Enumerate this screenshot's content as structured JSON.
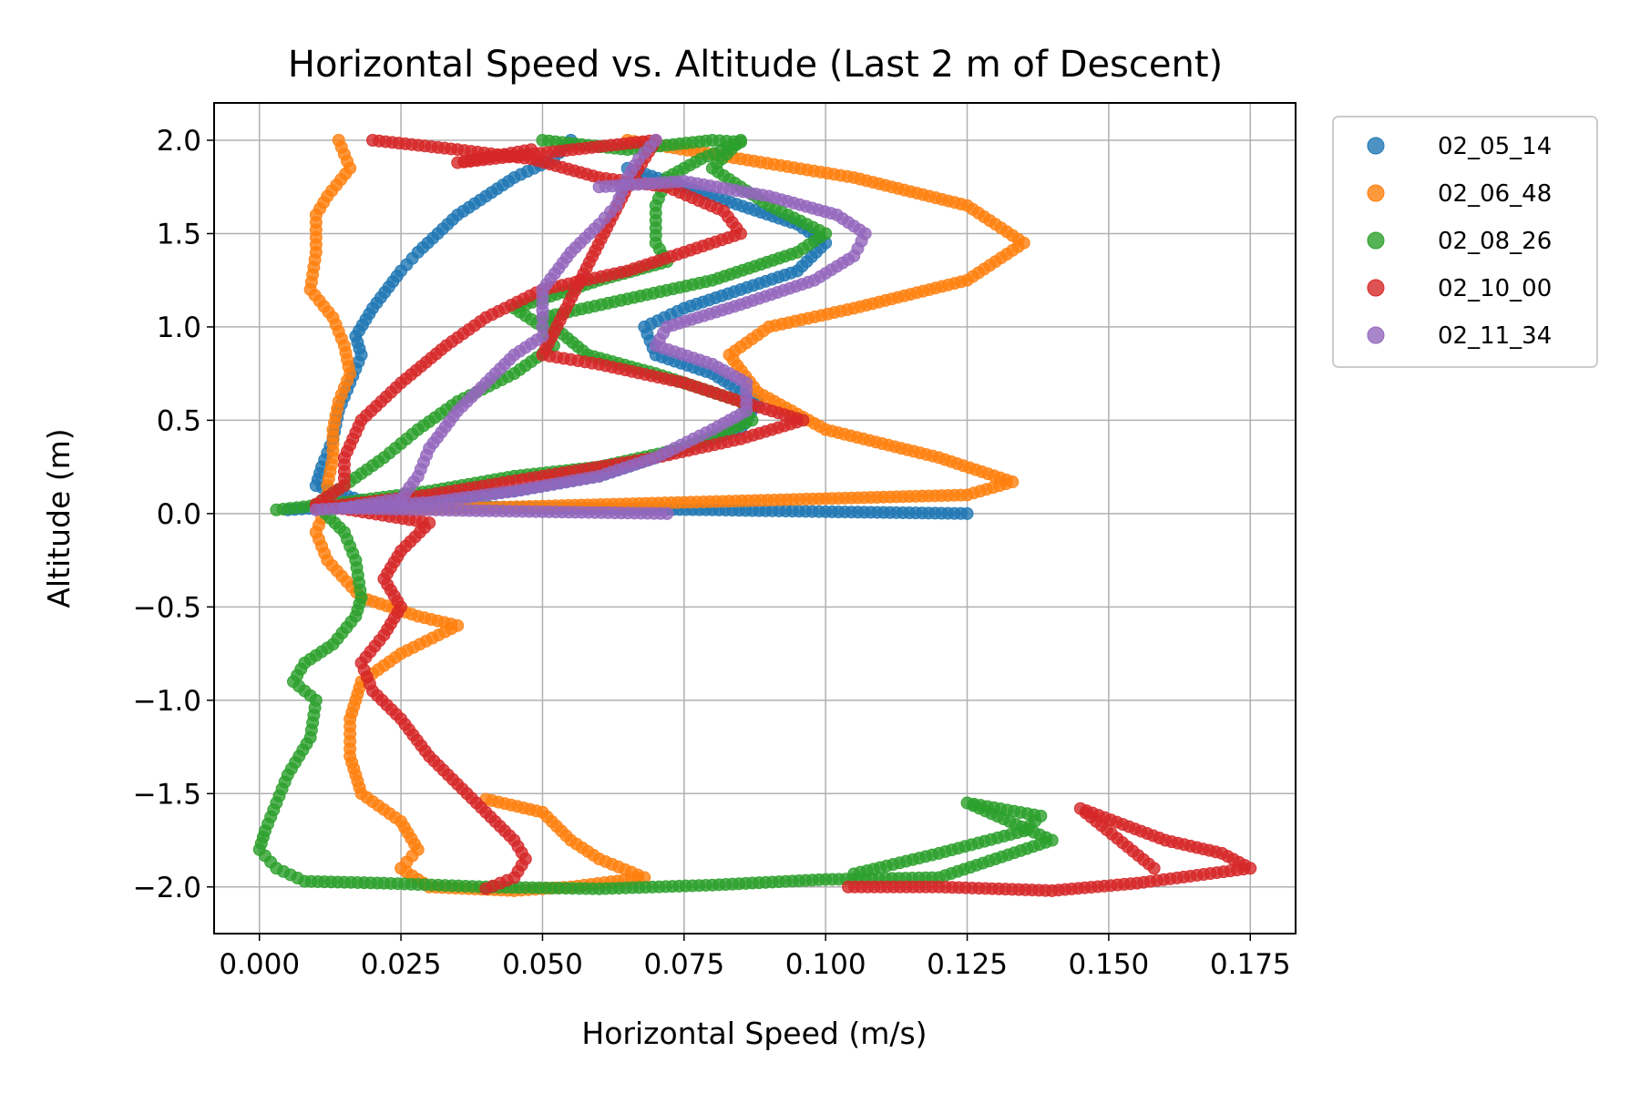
{
  "chart_data": {
    "type": "scatter",
    "title": "Horizontal Speed vs. Altitude (Last 2 m of Descent)",
    "xlabel": "Horizontal Speed (m/s)",
    "ylabel": "Altitude (m)",
    "xlim": [
      -0.008,
      0.183
    ],
    "ylim": [
      -2.25,
      2.2
    ],
    "xticks": [
      0.0,
      0.025,
      0.05,
      0.075,
      0.1,
      0.125,
      0.15,
      0.175
    ],
    "xtick_labels": [
      "0.000",
      "0.025",
      "0.050",
      "0.075",
      "0.100",
      "0.125",
      "0.150",
      "0.175"
    ],
    "yticks": [
      2.0,
      1.5,
      1.0,
      0.5,
      0.0,
      -0.5,
      -1.0,
      -1.5,
      -2.0
    ],
    "ytick_labels": [
      "2.0",
      "1.5",
      "1.0",
      "0.5",
      "0.0",
      "−0.5",
      "−1.0",
      "−1.5",
      "−2.0"
    ],
    "grid": true,
    "legend_position": "outside-top-right",
    "series": [
      {
        "name": "02_05_14",
        "color": "#1f77b4",
        "points": [
          [
            0.055,
            2.0
          ],
          [
            0.052,
            1.9
          ],
          [
            0.045,
            1.8
          ],
          [
            0.035,
            1.6
          ],
          [
            0.028,
            1.4
          ],
          [
            0.025,
            1.3
          ],
          [
            0.02,
            1.1
          ],
          [
            0.017,
            0.95
          ],
          [
            0.018,
            0.85
          ],
          [
            0.016,
            0.7
          ],
          [
            0.014,
            0.55
          ],
          [
            0.013,
            0.4
          ],
          [
            0.011,
            0.25
          ],
          [
            0.01,
            0.15
          ],
          [
            0.02,
            0.05
          ],
          [
            0.05,
            0.03
          ],
          [
            0.08,
            0.02
          ],
          [
            0.1,
            0.01
          ],
          [
            0.125,
            0.0
          ],
          [
            0.065,
            1.85
          ],
          [
            0.08,
            1.7
          ],
          [
            0.095,
            1.55
          ],
          [
            0.1,
            1.45
          ],
          [
            0.095,
            1.3
          ],
          [
            0.085,
            1.2
          ],
          [
            0.075,
            1.1
          ],
          [
            0.068,
            1.0
          ],
          [
            0.07,
            0.85
          ],
          [
            0.08,
            0.75
          ],
          [
            0.088,
            0.6
          ],
          [
            0.085,
            0.45
          ],
          [
            0.075,
            0.35
          ],
          [
            0.06,
            0.2
          ],
          [
            0.045,
            0.12
          ],
          [
            0.03,
            0.08
          ],
          [
            0.015,
            0.04
          ],
          [
            0.005,
            0.02
          ]
        ]
      },
      {
        "name": "02_06_48",
        "color": "#ff7f0e",
        "points": [
          [
            0.014,
            2.0
          ],
          [
            0.016,
            1.85
          ],
          [
            0.012,
            1.7
          ],
          [
            0.01,
            1.6
          ],
          [
            0.01,
            1.4
          ],
          [
            0.009,
            1.2
          ],
          [
            0.013,
            1.05
          ],
          [
            0.015,
            0.9
          ],
          [
            0.016,
            0.75
          ],
          [
            0.014,
            0.6
          ],
          [
            0.013,
            0.45
          ],
          [
            0.013,
            0.3
          ],
          [
            0.012,
            0.15
          ],
          [
            0.012,
            0.05
          ],
          [
            0.01,
            -0.1
          ],
          [
            0.012,
            -0.25
          ],
          [
            0.018,
            -0.45
          ],
          [
            0.028,
            -0.55
          ],
          [
            0.035,
            -0.6
          ],
          [
            0.025,
            -0.75
          ],
          [
            0.018,
            -0.9
          ],
          [
            0.016,
            -1.1
          ],
          [
            0.016,
            -1.3
          ],
          [
            0.018,
            -1.5
          ],
          [
            0.025,
            -1.65
          ],
          [
            0.028,
            -1.8
          ],
          [
            0.025,
            -1.9
          ],
          [
            0.03,
            -2.0
          ],
          [
            0.045,
            -2.02
          ],
          [
            0.055,
            -2.0
          ],
          [
            0.068,
            -1.95
          ],
          [
            0.06,
            -1.85
          ],
          [
            0.055,
            -1.75
          ],
          [
            0.05,
            -1.6
          ],
          [
            0.04,
            -1.53
          ],
          [
            0.065,
            2.0
          ],
          [
            0.085,
            1.9
          ],
          [
            0.105,
            1.8
          ],
          [
            0.125,
            1.65
          ],
          [
            0.135,
            1.45
          ],
          [
            0.125,
            1.25
          ],
          [
            0.105,
            1.1
          ],
          [
            0.09,
            1.0
          ],
          [
            0.083,
            0.85
          ],
          [
            0.088,
            0.65
          ],
          [
            0.1,
            0.45
          ],
          [
            0.12,
            0.3
          ],
          [
            0.133,
            0.17
          ],
          [
            0.125,
            0.1
          ],
          [
            0.1,
            0.08
          ],
          [
            0.075,
            0.06
          ],
          [
            0.05,
            0.04
          ],
          [
            0.025,
            0.02
          ]
        ]
      },
      {
        "name": "02_08_26",
        "color": "#2ca02c",
        "points": [
          [
            0.05,
            2.0
          ],
          [
            0.065,
            1.95
          ],
          [
            0.08,
            2.0
          ],
          [
            0.085,
            1.99
          ],
          [
            0.078,
            1.9
          ],
          [
            0.072,
            1.8
          ],
          [
            0.07,
            1.65
          ],
          [
            0.07,
            1.45
          ],
          [
            0.072,
            1.35
          ],
          [
            0.06,
            1.25
          ],
          [
            0.045,
            1.1
          ],
          [
            0.05,
            1.0
          ],
          [
            0.052,
            0.9
          ],
          [
            0.045,
            0.75
          ],
          [
            0.035,
            0.6
          ],
          [
            0.028,
            0.45
          ],
          [
            0.022,
            0.3
          ],
          [
            0.015,
            0.15
          ],
          [
            0.01,
            0.05
          ],
          [
            0.015,
            -0.1
          ],
          [
            0.017,
            -0.25
          ],
          [
            0.018,
            -0.45
          ],
          [
            0.017,
            -0.55
          ],
          [
            0.013,
            -0.7
          ],
          [
            0.008,
            -0.8
          ],
          [
            0.006,
            -0.9
          ],
          [
            0.01,
            -1.0
          ],
          [
            0.009,
            -1.2
          ],
          [
            0.005,
            -1.4
          ],
          [
            0.003,
            -1.55
          ],
          [
            0.001,
            -1.7
          ],
          [
            0.0,
            -1.8
          ],
          [
            0.003,
            -1.9
          ],
          [
            0.008,
            -1.97
          ],
          [
            0.022,
            -1.98
          ],
          [
            0.04,
            -2.0
          ],
          [
            0.06,
            -2.01
          ],
          [
            0.08,
            -1.99
          ],
          [
            0.1,
            -1.96
          ],
          [
            0.12,
            -1.95
          ],
          [
            0.13,
            -1.85
          ],
          [
            0.14,
            -1.75
          ],
          [
            0.125,
            -1.55
          ],
          [
            0.138,
            -1.62
          ],
          [
            0.135,
            -1.7
          ],
          [
            0.12,
            -1.82
          ],
          [
            0.105,
            -1.93
          ],
          [
            0.085,
            2.0
          ],
          [
            0.08,
            1.85
          ],
          [
            0.09,
            1.65
          ],
          [
            0.1,
            1.5
          ],
          [
            0.095,
            1.4
          ],
          [
            0.08,
            1.25
          ],
          [
            0.065,
            1.15
          ],
          [
            0.05,
            1.05
          ],
          [
            0.058,
            0.85
          ],
          [
            0.07,
            0.75
          ],
          [
            0.085,
            0.6
          ],
          [
            0.087,
            0.5
          ],
          [
            0.075,
            0.35
          ],
          [
            0.06,
            0.25
          ],
          [
            0.045,
            0.2
          ],
          [
            0.03,
            0.12
          ],
          [
            0.015,
            0.06
          ],
          [
            0.003,
            0.02
          ]
        ]
      },
      {
        "name": "02_10_00",
        "color": "#d62728",
        "points": [
          [
            0.02,
            2.0
          ],
          [
            0.035,
            1.95
          ],
          [
            0.048,
            1.9
          ],
          [
            0.06,
            1.8
          ],
          [
            0.072,
            1.75
          ],
          [
            0.082,
            1.62
          ],
          [
            0.085,
            1.5
          ],
          [
            0.075,
            1.4
          ],
          [
            0.065,
            1.3
          ],
          [
            0.05,
            1.2
          ],
          [
            0.04,
            1.05
          ],
          [
            0.033,
            0.9
          ],
          [
            0.025,
            0.7
          ],
          [
            0.018,
            0.5
          ],
          [
            0.015,
            0.3
          ],
          [
            0.015,
            0.15
          ],
          [
            0.01,
            0.05
          ],
          [
            0.03,
            -0.05
          ],
          [
            0.025,
            -0.2
          ],
          [
            0.022,
            -0.35
          ],
          [
            0.025,
            -0.5
          ],
          [
            0.022,
            -0.65
          ],
          [
            0.018,
            -0.8
          ],
          [
            0.02,
            -0.95
          ],
          [
            0.025,
            -1.1
          ],
          [
            0.03,
            -1.3
          ],
          [
            0.035,
            -1.45
          ],
          [
            0.04,
            -1.6
          ],
          [
            0.045,
            -1.75
          ],
          [
            0.047,
            -1.85
          ],
          [
            0.045,
            -1.95
          ],
          [
            0.04,
            -2.01
          ],
          [
            0.104,
            -2.0
          ],
          [
            0.12,
            -2.0
          ],
          [
            0.14,
            -2.02
          ],
          [
            0.155,
            -1.98
          ],
          [
            0.175,
            -1.9
          ],
          [
            0.17,
            -1.82
          ],
          [
            0.16,
            -1.75
          ],
          [
            0.145,
            -1.58
          ],
          [
            0.158,
            -1.9
          ],
          [
            0.048,
            1.95
          ],
          [
            0.035,
            1.88
          ],
          [
            0.07,
            2.0
          ],
          [
            0.065,
            1.75
          ],
          [
            0.05,
            0.85
          ],
          [
            0.06,
            0.8
          ],
          [
            0.075,
            0.7
          ],
          [
            0.085,
            0.6
          ],
          [
            0.096,
            0.5
          ],
          [
            0.085,
            0.4
          ],
          [
            0.07,
            0.3
          ],
          [
            0.05,
            0.2
          ],
          [
            0.03,
            0.1
          ],
          [
            0.01,
            0.03
          ]
        ]
      },
      {
        "name": "02_11_34",
        "color": "#9467bd",
        "points": [
          [
            0.07,
            2.0
          ],
          [
            0.067,
            1.9
          ],
          [
            0.065,
            1.8
          ],
          [
            0.063,
            1.65
          ],
          [
            0.06,
            1.55
          ],
          [
            0.055,
            1.4
          ],
          [
            0.05,
            1.2
          ],
          [
            0.05,
            1.05
          ],
          [
            0.05,
            0.95
          ],
          [
            0.045,
            0.85
          ],
          [
            0.04,
            0.7
          ],
          [
            0.035,
            0.55
          ],
          [
            0.03,
            0.35
          ],
          [
            0.028,
            0.2
          ],
          [
            0.025,
            0.08
          ],
          [
            0.015,
            0.03
          ],
          [
            0.03,
            0.02
          ],
          [
            0.05,
            0.01
          ],
          [
            0.072,
            0.0
          ],
          [
            0.06,
            1.75
          ],
          [
            0.075,
            1.78
          ],
          [
            0.09,
            1.7
          ],
          [
            0.102,
            1.6
          ],
          [
            0.107,
            1.5
          ],
          [
            0.105,
            1.38
          ],
          [
            0.098,
            1.25
          ],
          [
            0.085,
            1.12
          ],
          [
            0.072,
            1.0
          ],
          [
            0.07,
            0.9
          ],
          [
            0.08,
            0.8
          ],
          [
            0.086,
            0.7
          ],
          [
            0.086,
            0.55
          ],
          [
            0.08,
            0.45
          ],
          [
            0.07,
            0.3
          ],
          [
            0.06,
            0.2
          ],
          [
            0.045,
            0.12
          ],
          [
            0.03,
            0.06
          ],
          [
            0.01,
            0.02
          ]
        ]
      }
    ]
  }
}
